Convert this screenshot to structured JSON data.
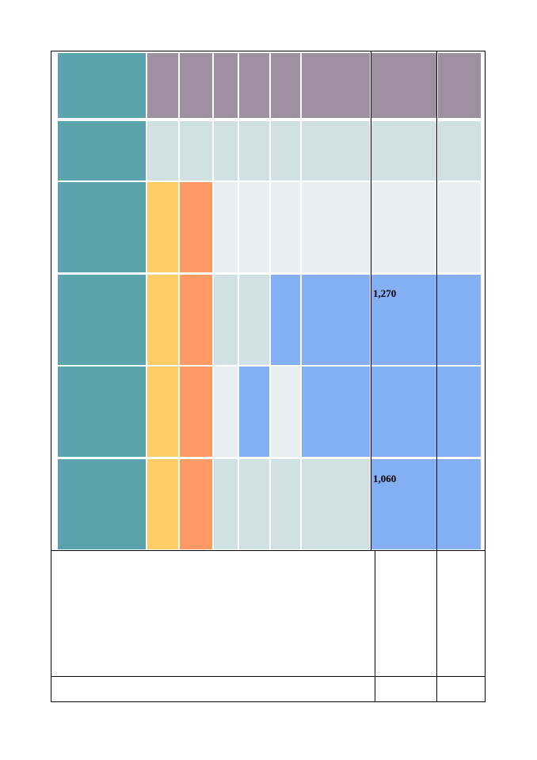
{
  "colors": {
    "teal": "#5ba3ad",
    "mauve": "#9e8fa1",
    "light_teal": "#d0e0e3",
    "pale": "#e8eff1",
    "yellow": "#ffcc66",
    "orange": "#ff9966",
    "blue": "#85aff5"
  },
  "table": {
    "values": {
      "row4_col8": "1,270",
      "row6_col8": "1,060"
    }
  }
}
